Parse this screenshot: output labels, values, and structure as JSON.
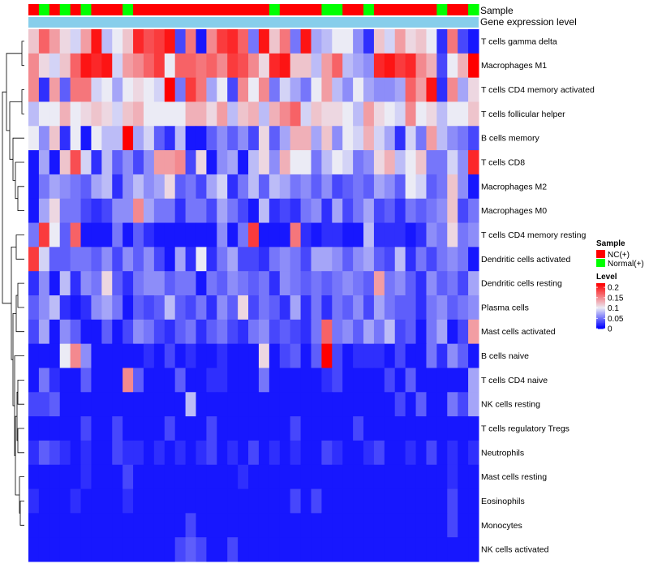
{
  "chart_data": {
    "type": "heatmap",
    "title": "",
    "annotation_labels": {
      "sample": "Sample",
      "gene_expression": "Gene expression level"
    },
    "rows": [
      "T cells gamma delta",
      "Macrophages M1",
      "T cells CD4 memory activated",
      "T cells follicular helper",
      "B cells memory",
      "T cells CD8",
      "Macrophages M2",
      "Macrophages M0",
      "T cells CD4 memory resting",
      "Dendritic cells activated",
      "Dendritic cells resting",
      "Plasma cells",
      "Mast cells activated",
      "B cells naive",
      "T cells CD4 naive",
      "NK cells resting",
      "T cells regulatory  Tregs",
      "Neutrophils",
      "Mast cells resting",
      "Eosinophils",
      "Monocytes",
      "NK cells activated"
    ],
    "sample_groups": [
      "NC",
      "Normal",
      "NC",
      "Normal",
      "NC",
      "Normal",
      "NC",
      "NC",
      "NC",
      "Normal",
      "NC",
      "NC",
      "NC",
      "NC",
      "NC",
      "NC",
      "NC",
      "NC",
      "NC",
      "NC",
      "NC",
      "NC",
      "NC",
      "Normal",
      "NC",
      "NC",
      "NC",
      "NC",
      "Normal",
      "Normal",
      "NC",
      "NC",
      "Normal",
      "NC",
      "NC",
      "NC",
      "NC",
      "NC",
      "NC",
      "Normal",
      "NC",
      "NC",
      "Normal"
    ],
    "values": [
      [
        0.12,
        0.17,
        0.14,
        0.11,
        0.09,
        0.14,
        0.21,
        0.08,
        0.1,
        0.12,
        0.2,
        0.18,
        0.19,
        0.21,
        0.03,
        0.16,
        0.01,
        0.15,
        0.19,
        0.2,
        0.17,
        0.05,
        0.21,
        0.12,
        0.16,
        0.05,
        0.21,
        0.07,
        0.08,
        0.1,
        0.1,
        0.06,
        0.02,
        0.12,
        0.09,
        0.14,
        0.11,
        0.12,
        0.1,
        0.02,
        0.16,
        0.03,
        0.01
      ],
      [
        0.15,
        0.11,
        0.09,
        0.12,
        0.17,
        0.21,
        0.2,
        0.21,
        0.09,
        0.14,
        0.15,
        0.17,
        0.19,
        0.1,
        0.17,
        0.17,
        0.16,
        0.17,
        0.15,
        0.19,
        0.18,
        0.15,
        0.11,
        0.2,
        0.21,
        0.12,
        0.12,
        0.08,
        0.14,
        0.17,
        0.08,
        0.07,
        0.06,
        0.2,
        0.21,
        0.19,
        0.2,
        0.15,
        0.13,
        0.03,
        0.1,
        0.13,
        0.22
      ],
      [
        0.15,
        0.02,
        0.14,
        0.04,
        0.16,
        0.16,
        0.09,
        0.1,
        0.07,
        0.1,
        0.11,
        0.1,
        0.09,
        0.22,
        0.05,
        0.19,
        0.16,
        0.07,
        0.1,
        0.03,
        0.15,
        0.1,
        0.15,
        0.05,
        0.09,
        0.07,
        0.05,
        0.1,
        0.14,
        0.08,
        0.06,
        0.1,
        0.07,
        0.06,
        0.06,
        0.07,
        0.17,
        0.14,
        0.21,
        0.02,
        0.15,
        0.07,
        0.11
      ],
      [
        0.08,
        0.1,
        0.1,
        0.13,
        0.1,
        0.11,
        0.12,
        0.11,
        0.09,
        0.12,
        0.13,
        0.1,
        0.1,
        0.1,
        0.1,
        0.13,
        0.13,
        0.11,
        0.14,
        0.08,
        0.12,
        0.13,
        0.08,
        0.13,
        0.15,
        0.17,
        0.09,
        0.12,
        0.11,
        0.11,
        0.1,
        0.08,
        0.14,
        0.11,
        0.1,
        0.09,
        0.15,
        0.1,
        0.11,
        0.08,
        0.1,
        0.1,
        0.12
      ],
      [
        0.1,
        0.06,
        0.12,
        0.02,
        0.1,
        0.01,
        0.1,
        0.08,
        0.08,
        0.22,
        0.07,
        0.09,
        0.04,
        0.02,
        0.08,
        0.01,
        0.01,
        0.04,
        0.06,
        0.04,
        0.06,
        0.03,
        0.11,
        0.04,
        0.07,
        0.13,
        0.13,
        0.07,
        0.12,
        0.06,
        0.1,
        0.09,
        0.13,
        0.09,
        0.07,
        0.02,
        0.09,
        0.05,
        0.14,
        0.08,
        0.06,
        0.05,
        0.03
      ],
      [
        0.01,
        0.07,
        0.01,
        0.12,
        0.18,
        0.09,
        0.02,
        0.08,
        0.04,
        0.06,
        0.03,
        0.06,
        0.14,
        0.14,
        0.15,
        0.03,
        0.11,
        0.01,
        0.06,
        0.07,
        0.01,
        0.08,
        0.11,
        0.06,
        0.13,
        0.1,
        0.1,
        0.05,
        0.08,
        0.1,
        0.09,
        0.05,
        0.06,
        0.11,
        0.13,
        0.08,
        0.1,
        0.12,
        0.05,
        0.05,
        0.09,
        0.06,
        0.2
      ],
      [
        0.01,
        0.05,
        0.07,
        0.06,
        0.05,
        0.04,
        0.07,
        0.08,
        0.02,
        0.06,
        0.08,
        0.06,
        0.07,
        0.11,
        0.04,
        0.05,
        0.03,
        0.07,
        0.09,
        0.02,
        0.05,
        0.08,
        0.04,
        0.08,
        0.07,
        0.05,
        0.06,
        0.04,
        0.06,
        0.03,
        0.04,
        0.05,
        0.04,
        0.07,
        0.06,
        0.04,
        0.1,
        0.09,
        0.04,
        0.05,
        0.12,
        0.06,
        0.01
      ],
      [
        0.01,
        0.07,
        0.11,
        0.05,
        0.05,
        0.03,
        0.02,
        0.03,
        0.06,
        0.06,
        0.15,
        0.07,
        0.05,
        0.05,
        0.02,
        0.05,
        0.05,
        0.03,
        0.07,
        0.05,
        0.03,
        0.01,
        0.08,
        0.02,
        0.03,
        0.02,
        0.05,
        0.06,
        0.02,
        0.07,
        0.03,
        0.05,
        0.07,
        0.03,
        0.04,
        0.02,
        0.05,
        0.04,
        0.05,
        0.06,
        0.12,
        0.03,
        0.05
      ],
      [
        0.05,
        0.19,
        0.1,
        0.04,
        0.17,
        0.01,
        0.01,
        0.01,
        0.05,
        0.01,
        0.04,
        0.02,
        0.01,
        0.01,
        0.01,
        0.01,
        0.01,
        0.01,
        0.06,
        0.01,
        0.05,
        0.19,
        0.01,
        0.01,
        0.01,
        0.16,
        0.02,
        0.01,
        0.02,
        0.02,
        0.01,
        0.01,
        0.08,
        0.02,
        0.02,
        0.02,
        0.01,
        0.02,
        0.06,
        0.05,
        0.11,
        0.05,
        0.06
      ],
      [
        0.19,
        0.09,
        0.04,
        0.04,
        0.05,
        0.05,
        0.04,
        0.06,
        0.03,
        0.06,
        0.04,
        0.06,
        0.03,
        0.01,
        0.07,
        0.02,
        0.1,
        0.02,
        0.05,
        0.07,
        0.03,
        0.03,
        0.02,
        0.05,
        0.06,
        0.05,
        0.03,
        0.07,
        0.07,
        0.06,
        0.04,
        0.06,
        0.07,
        0.04,
        0.03,
        0.08,
        0.02,
        0.05,
        0.03,
        0.05,
        0.06,
        0.05,
        0.01
      ],
      [
        0.02,
        0.06,
        0.01,
        0.08,
        0.02,
        0.06,
        0.05,
        0.11,
        0.04,
        0.02,
        0.05,
        0.06,
        0.06,
        0.04,
        0.05,
        0.05,
        0.01,
        0.05,
        0.04,
        0.06,
        0.05,
        0.04,
        0.05,
        0.02,
        0.06,
        0.05,
        0.04,
        0.05,
        0.04,
        0.05,
        0.06,
        0.05,
        0.04,
        0.14,
        0.05,
        0.06,
        0.04,
        0.02,
        0.06,
        0.04,
        0.05,
        0.03,
        0.07
      ],
      [
        0.04,
        0.06,
        0.08,
        0.02,
        0.01,
        0.02,
        0.06,
        0.07,
        0.05,
        0.01,
        0.04,
        0.03,
        0.04,
        0.08,
        0.04,
        0.03,
        0.05,
        0.02,
        0.06,
        0.04,
        0.11,
        0.03,
        0.05,
        0.04,
        0.02,
        0.07,
        0.02,
        0.05,
        0.02,
        0.05,
        0.04,
        0.06,
        0.03,
        0.07,
        0.05,
        0.04,
        0.04,
        0.02,
        0.05,
        0.06,
        0.04,
        0.05,
        0.06
      ],
      [
        0.03,
        0.07,
        0.01,
        0.06,
        0.04,
        0.01,
        0.01,
        0.04,
        0.01,
        0.03,
        0.06,
        0.05,
        0.03,
        0.02,
        0.04,
        0.05,
        0.02,
        0.04,
        0.05,
        0.03,
        0.02,
        0.05,
        0.06,
        0.03,
        0.04,
        0.03,
        0.02,
        0.05,
        0.17,
        0.05,
        0.06,
        0.04,
        0.07,
        0.05,
        0.08,
        0.03,
        0.04,
        0.01,
        0.05,
        0.07,
        0.01,
        0.03,
        0.14
      ],
      [
        0.01,
        0.01,
        0.01,
        0.1,
        0.15,
        0.06,
        0.01,
        0.01,
        0.01,
        0.01,
        0.01,
        0.02,
        0.01,
        0.03,
        0.01,
        0.02,
        0.01,
        0.01,
        0.02,
        0.01,
        0.01,
        0.01,
        0.11,
        0.01,
        0.03,
        0.04,
        0.01,
        0.04,
        0.22,
        0.03,
        0.01,
        0.02,
        0.02,
        0.02,
        0.01,
        0.03,
        0.01,
        0.01,
        0.05,
        0.02,
        0.06,
        0.04,
        0.01
      ],
      [
        0.01,
        0.05,
        0.02,
        0.01,
        0.01,
        0.04,
        0.01,
        0.01,
        0.01,
        0.15,
        0.04,
        0.01,
        0.01,
        0.01,
        0.04,
        0.01,
        0.01,
        0.02,
        0.02,
        0.01,
        0.01,
        0.01,
        0.05,
        0.01,
        0.01,
        0.01,
        0.01,
        0.01,
        0.02,
        0.03,
        0.01,
        0.01,
        0.01,
        0.01,
        0.03,
        0.01,
        0.04,
        0.01,
        0.01,
        0.01,
        0.01,
        0.01,
        0.07
      ],
      [
        0.03,
        0.03,
        0.04,
        0.01,
        0.01,
        0.01,
        0.01,
        0.01,
        0.01,
        0.01,
        0.01,
        0.01,
        0.01,
        0.01,
        0.01,
        0.08,
        0.01,
        0.01,
        0.01,
        0.01,
        0.01,
        0.01,
        0.01,
        0.01,
        0.01,
        0.01,
        0.01,
        0.01,
        0.01,
        0.01,
        0.01,
        0.01,
        0.01,
        0.01,
        0.01,
        0.03,
        0.01,
        0.04,
        0.01,
        0.01,
        0.05,
        0.03,
        0.07
      ],
      [
        0.01,
        0.01,
        0.01,
        0.01,
        0.01,
        0.03,
        0.01,
        0.01,
        0.03,
        0.01,
        0.01,
        0.01,
        0.01,
        0.03,
        0.01,
        0.01,
        0.01,
        0.03,
        0.01,
        0.01,
        0.01,
        0.01,
        0.01,
        0.01,
        0.01,
        0.03,
        0.01,
        0.01,
        0.01,
        0.01,
        0.01,
        0.03,
        0.01,
        0.01,
        0.01,
        0.01,
        0.01,
        0.01,
        0.01,
        0.01,
        0.01,
        0.01,
        0.01
      ],
      [
        0.02,
        0.04,
        0.03,
        0.02,
        0.01,
        0.02,
        0.01,
        0.01,
        0.03,
        0.02,
        0.02,
        0.01,
        0.02,
        0.01,
        0.02,
        0.01,
        0.02,
        0.03,
        0.01,
        0.02,
        0.01,
        0.03,
        0.01,
        0.02,
        0.01,
        0.02,
        0.01,
        0.01,
        0.03,
        0.02,
        0.01,
        0.01,
        0.02,
        0.03,
        0.01,
        0.01,
        0.02,
        0.01,
        0.03,
        0.01,
        0.02,
        0.01,
        0.02
      ],
      [
        0.01,
        0.01,
        0.01,
        0.01,
        0.01,
        0.02,
        0.01,
        0.01,
        0.01,
        0.03,
        0.01,
        0.01,
        0.01,
        0.01,
        0.01,
        0.01,
        0.01,
        0.01,
        0.01,
        0.01,
        0.02,
        0.01,
        0.01,
        0.01,
        0.01,
        0.01,
        0.01,
        0.01,
        0.01,
        0.01,
        0.01,
        0.01,
        0.01,
        0.01,
        0.01,
        0.01,
        0.01,
        0.01,
        0.01,
        0.01,
        0.02,
        0.01,
        0.01
      ],
      [
        0.02,
        0.01,
        0.01,
        0.01,
        0.02,
        0.01,
        0.01,
        0.01,
        0.01,
        0.02,
        0.01,
        0.01,
        0.01,
        0.01,
        0.01,
        0.01,
        0.01,
        0.01,
        0.01,
        0.01,
        0.01,
        0.01,
        0.01,
        0.01,
        0.01,
        0.03,
        0.01,
        0.03,
        0.01,
        0.01,
        0.01,
        0.01,
        0.01,
        0.01,
        0.01,
        0.01,
        0.01,
        0.01,
        0.01,
        0.01,
        0.03,
        0.01,
        0.01
      ],
      [
        0.01,
        0.01,
        0.01,
        0.01,
        0.01,
        0.01,
        0.01,
        0.01,
        0.01,
        0.01,
        0.01,
        0.01,
        0.01,
        0.01,
        0.01,
        0.03,
        0.01,
        0.01,
        0.01,
        0.01,
        0.01,
        0.01,
        0.01,
        0.01,
        0.01,
        0.01,
        0.01,
        0.01,
        0.01,
        0.01,
        0.01,
        0.01,
        0.01,
        0.01,
        0.01,
        0.01,
        0.01,
        0.01,
        0.01,
        0.01,
        0.03,
        0.01,
        0.01
      ],
      [
        0.01,
        0.01,
        0.01,
        0.01,
        0.01,
        0.01,
        0.01,
        0.01,
        0.01,
        0.01,
        0.01,
        0.01,
        0.01,
        0.01,
        0.03,
        0.04,
        0.03,
        0.01,
        0.01,
        0.03,
        0.01,
        0.01,
        0.01,
        0.01,
        0.01,
        0.01,
        0.01,
        0.01,
        0.01,
        0.01,
        0.01,
        0.01,
        0.01,
        0.01,
        0.01,
        0.01,
        0.01,
        0.01,
        0.01,
        0.01,
        0.01,
        0.01,
        0.01
      ]
    ],
    "color_scale": {
      "min": 0,
      "max": 0.22,
      "mid": 0.1,
      "low_color": "#0000ff",
      "mid_color": "#ebebf5",
      "high_color": "#ff0000",
      "ticks": [
        "0.2",
        "0.15",
        "0.1",
        "0.05",
        "0"
      ]
    },
    "gene_expression_color": "#87ceeb",
    "legend": {
      "sample_title": "Sample",
      "sample_entries": [
        {
          "label": "NC(+)",
          "color": "#ff0000"
        },
        {
          "label": "Normal(+)",
          "color": "#00ff00"
        }
      ],
      "level_title": "Level"
    },
    "group_colors": {
      "NC": "#ff0000",
      "Normal": "#00ff00"
    }
  }
}
